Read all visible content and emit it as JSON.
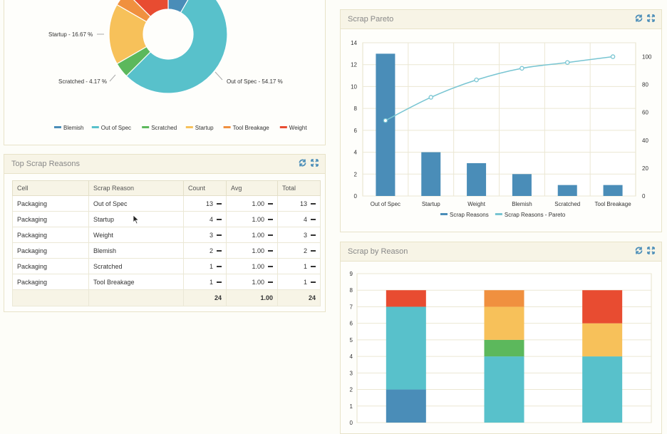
{
  "pie_panel": {
    "labels": {
      "startup": "Startup - 16.67 %",
      "scratched": "Scratched - 4.17 %",
      "out_of_spec": "Out of Spec - 54.17 %"
    },
    "legend": [
      "Blemish",
      "Out of Spec",
      "Scratched",
      "Startup",
      "Tool Breakage",
      "Weight"
    ],
    "legend_colors": [
      "#4a8db8",
      "#58c1cb",
      "#5cb85c",
      "#f7c15a",
      "#f0903f",
      "#e84c31"
    ]
  },
  "reasons_panel": {
    "title": "Top Scrap Reasons",
    "columns": [
      "Cell",
      "Scrap Reason",
      "Count",
      "Avg",
      "Total"
    ],
    "rows": [
      {
        "cell": "Packaging",
        "reason": "Out of Spec",
        "count": "13",
        "avg": "1.00",
        "total": "13"
      },
      {
        "cell": "Packaging",
        "reason": "Startup",
        "count": "4",
        "avg": "1.00",
        "total": "4"
      },
      {
        "cell": "Packaging",
        "reason": "Weight",
        "count": "3",
        "avg": "1.00",
        "total": "3"
      },
      {
        "cell": "Packaging",
        "reason": "Blemish",
        "count": "2",
        "avg": "1.00",
        "total": "2"
      },
      {
        "cell": "Packaging",
        "reason": "Scratched",
        "count": "1",
        "avg": "1.00",
        "total": "1"
      },
      {
        "cell": "Packaging",
        "reason": "Tool Breakage",
        "count": "1",
        "avg": "1.00",
        "total": "1"
      }
    ],
    "footer": {
      "count": "24",
      "avg": "1.00",
      "total": "24"
    }
  },
  "pareto_panel": {
    "title": "Scrap Pareto",
    "legend": [
      "Scrap Reasons",
      "Scrap Reasons - Pareto"
    ]
  },
  "stacked_panel": {
    "title": "Scrap by Reason"
  },
  "chart_data": [
    {
      "type": "pie",
      "categories": [
        "Blemish",
        "Out of Spec",
        "Scratched",
        "Startup",
        "Tool Breakage",
        "Weight"
      ],
      "values": [
        2,
        13,
        1,
        4,
        1,
        3
      ],
      "colors": [
        "#4a8db8",
        "#58c1cb",
        "#5cb85c",
        "#f7c15a",
        "#f0903f",
        "#e84c31"
      ]
    },
    {
      "type": "bar",
      "categories": [
        "Out of Spec",
        "Startup",
        "Weight",
        "Blemish",
        "Scratched",
        "Tool Breakage"
      ],
      "series": [
        {
          "name": "Scrap Reasons",
          "values": [
            13,
            4,
            3,
            2,
            1,
            1
          ],
          "color": "#4a8db8"
        },
        {
          "name": "Scrap Reasons - Pareto",
          "type": "line",
          "axis": "right",
          "values": [
            54.17,
            70.83,
            83.33,
            91.67,
            95.83,
            100
          ],
          "color": "#78c5d2"
        }
      ],
      "ylim": [
        0,
        14
      ],
      "yticks": [
        0,
        2,
        4,
        6,
        8,
        10,
        12,
        14
      ],
      "y2lim": [
        0,
        110
      ],
      "y2ticks": [
        0,
        20,
        40,
        60,
        80,
        100
      ],
      "grid": true,
      "legend": "bottom"
    },
    {
      "type": "bar",
      "stacked": true,
      "ylim": [
        0,
        9
      ],
      "yticks": [
        0,
        1,
        2,
        3,
        4,
        5,
        6,
        7,
        8,
        9
      ],
      "grid": true,
      "stacks": [
        [
          {
            "value": 2,
            "color": "#4a8db8"
          },
          {
            "value": 5,
            "color": "#58c1cb"
          },
          {
            "value": 1,
            "color": "#e84c31"
          }
        ],
        [
          {
            "value": 4,
            "color": "#58c1cb"
          },
          {
            "value": 1,
            "color": "#5cb85c"
          },
          {
            "value": 2,
            "color": "#f7c15a"
          },
          {
            "value": 1,
            "color": "#f0903f"
          }
        ],
        [
          {
            "value": 4,
            "color": "#58c1cb"
          },
          {
            "value": 2,
            "color": "#f7c15a"
          },
          {
            "value": 2,
            "color": "#e84c31"
          }
        ]
      ]
    }
  ]
}
